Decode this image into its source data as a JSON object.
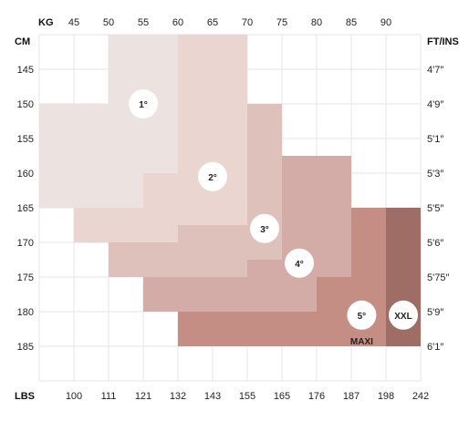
{
  "chart_data": {
    "type": "heatmap",
    "axis_titles": {
      "top": "KG",
      "bottom": "LBS",
      "left": "CM",
      "right": "FT/INS"
    },
    "kg_ticks": [
      "45",
      "50",
      "55",
      "60",
      "65",
      "70",
      "75",
      "80",
      "85",
      "90"
    ],
    "lbs_ticks": [
      "100",
      "111",
      "121",
      "132",
      "143",
      "155",
      "165",
      "176",
      "187",
      "198",
      "242"
    ],
    "cm_ticks": [
      "145",
      "150",
      "155",
      "160",
      "165",
      "170",
      "175",
      "180",
      "185"
    ],
    "ft_ticks": [
      "4'7″",
      "4'9″",
      "5'1″",
      "5'3″",
      "5'5″",
      "5'6″",
      "5'75″",
      "5'9″",
      "6'1″"
    ],
    "regions": [
      {
        "size": "1°",
        "color": "#ece3e1",
        "rects": [
          {
            "kg": [
              50,
              60
            ],
            "cm": [
              140,
              150
            ]
          },
          {
            "kg": [
              40,
              60
            ],
            "cm": [
              150,
              160
            ]
          },
          {
            "kg": [
              40,
              55
            ],
            "cm": [
              160,
              165
            ]
          }
        ],
        "label_at": {
          "kg": 55,
          "cm": 150
        }
      },
      {
        "size": "2°",
        "color": "#ebd5d0",
        "rects": [
          {
            "kg": [
              60,
              70
            ],
            "cm": [
              140,
              150
            ]
          },
          {
            "kg": [
              60,
              70
            ],
            "cm": [
              150,
              160
            ]
          },
          {
            "kg": [
              55,
              70
            ],
            "cm": [
              160,
              165
            ]
          },
          {
            "kg": [
              45,
              60
            ],
            "cm": [
              165,
              170
            ]
          },
          {
            "kg": [
              60,
              70
            ],
            "cm": [
              165,
              167.5
            ]
          }
        ],
        "label_at": {
          "kg": 65,
          "cm": 160.5
        }
      },
      {
        "size": "3°",
        "color": "#dfc1bc",
        "rects": [
          {
            "kg": [
              70,
              75
            ],
            "cm": [
              150,
              157.5
            ]
          },
          {
            "kg": [
              70,
              80
            ],
            "cm": [
              157.5,
              165
            ]
          },
          {
            "kg": [
              70,
              75
            ],
            "cm": [
              165,
              172.5
            ]
          },
          {
            "kg": [
              60,
              70
            ],
            "cm": [
              167.5,
              172.5
            ]
          },
          {
            "kg": [
              50,
              70
            ],
            "cm": [
              170,
              175
            ]
          }
        ],
        "label_at": {
          "kg": 72.5,
          "cm": 168
        }
      },
      {
        "size": "4°",
        "color": "#d4aca7",
        "rects": [
          {
            "kg": [
              75,
              80
            ],
            "cm": [
              157.5,
              165
            ]
          },
          {
            "kg": [
              80,
              85
            ],
            "cm": [
              157.5,
              165
            ]
          },
          {
            "kg": [
              75,
              85
            ],
            "cm": [
              165,
              172.5
            ]
          },
          {
            "kg": [
              70,
              85
            ],
            "cm": [
              172.5,
              175
            ]
          },
          {
            "kg": [
              55,
              80
            ],
            "cm": [
              175,
              180
            ]
          }
        ],
        "label_at": {
          "kg": 77.5,
          "cm": 173
        }
      },
      {
        "size": "5°",
        "label_below": "MAXI",
        "color": "#c58e84",
        "rects": [
          {
            "kg": [
              85,
              90
            ],
            "cm": [
              165,
              175
            ]
          },
          {
            "kg": [
              80,
              90
            ],
            "cm": [
              175,
              180
            ]
          },
          {
            "kg": [
              60,
              90
            ],
            "cm": [
              180,
              185
            ]
          }
        ],
        "label_at": {
          "kg": 86.5,
          "cm": 180.5
        }
      },
      {
        "size": "XXL",
        "color": "#9e6e66",
        "rects": [
          {
            "kg": [
              90,
              95
            ],
            "cm": [
              165,
              185
            ]
          }
        ],
        "label_at": {
          "kg": 92.5,
          "cm": 180.5
        }
      }
    ],
    "kg_range": [
      40,
      95
    ],
    "cm_range": [
      140,
      190
    ],
    "grid": true
  }
}
